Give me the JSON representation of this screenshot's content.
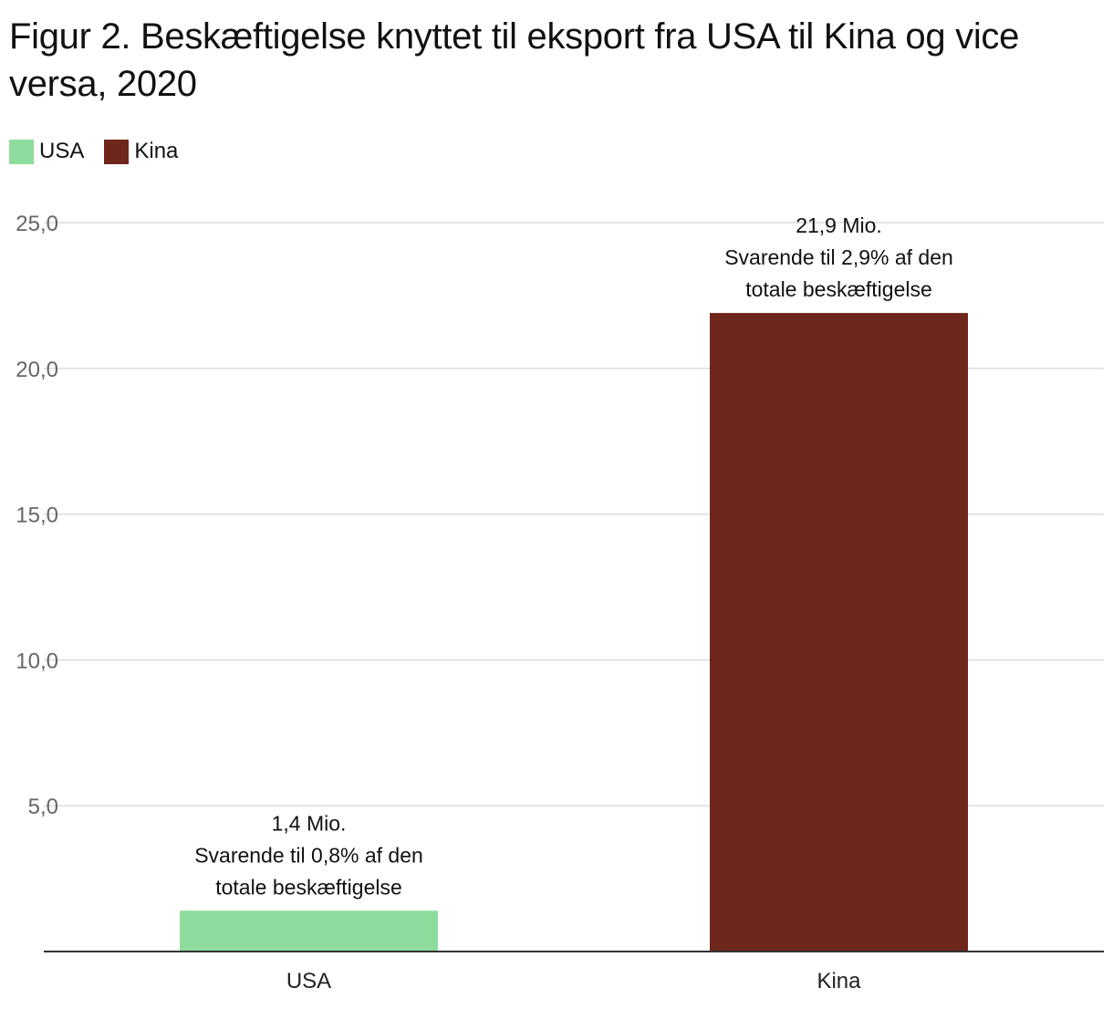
{
  "chart_data": {
    "type": "bar",
    "title": "Figur 2. Beskæftigelse knyttet til eksport fra USA til Kina og vice versa, 2020",
    "categories": [
      "USA",
      "Kina"
    ],
    "values": [
      1.4,
      21.9
    ],
    "colors": [
      "#8ddc9d",
      "#6f261b"
    ],
    "legend": [
      {
        "label": "USA",
        "color": "#8ddc9d"
      },
      {
        "label": "Kina",
        "color": "#6f261b"
      }
    ],
    "legend_position": "top-left",
    "y_ticks": [
      "5,0",
      "10,0",
      "15,0",
      "20,0",
      "25,0"
    ],
    "y_tick_values": [
      5,
      10,
      15,
      20,
      25
    ],
    "ylim": [
      0,
      25
    ],
    "grid": true,
    "data_labels": [
      [
        "1,4 Mio.",
        "Svarende til 0,8% af den",
        "totale beskæftigelse"
      ],
      [
        "21,9 Mio.",
        "Svarende til 2,9% af den",
        "totale beskæftigelse"
      ]
    ],
    "xlabel": "",
    "ylabel": ""
  }
}
